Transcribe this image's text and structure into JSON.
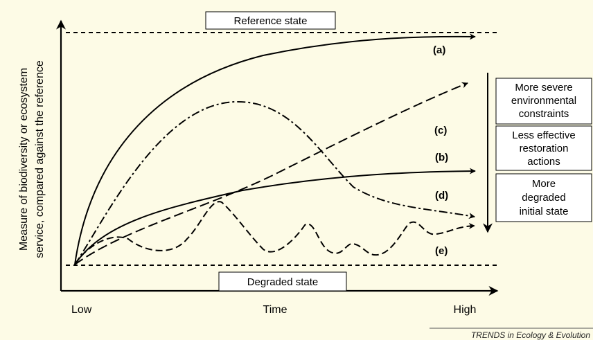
{
  "diagram": {
    "reference_label": "Reference state",
    "degraded_label": "Degraded state",
    "y_axis_label_line1": "Measure of biodiversity or ecosystem",
    "y_axis_label_line2": "service, compared against the reference",
    "x_axis_low": "Low",
    "x_axis_title": "Time",
    "x_axis_high": "High",
    "curves": [
      {
        "id": "a",
        "label": "(a)",
        "style": "solid"
      },
      {
        "id": "b",
        "label": "(b)",
        "style": "solid"
      },
      {
        "id": "c",
        "label": "(c)",
        "style": "dashed"
      },
      {
        "id": "d",
        "label": "(d)",
        "style": "dash-dot"
      },
      {
        "id": "e",
        "label": "(e)",
        "style": "dashed"
      }
    ],
    "factors": [
      {
        "lines": [
          "More severe",
          "environmental",
          "constraints"
        ]
      },
      {
        "lines": [
          "Less effective",
          "restoration",
          "actions"
        ]
      },
      {
        "lines": [
          "More",
          "degraded",
          "initial state"
        ]
      }
    ],
    "credit": "TRENDS in Ecology & Evolution",
    "colors": {
      "background": "#fdfbe6",
      "ink": "#000000"
    }
  }
}
